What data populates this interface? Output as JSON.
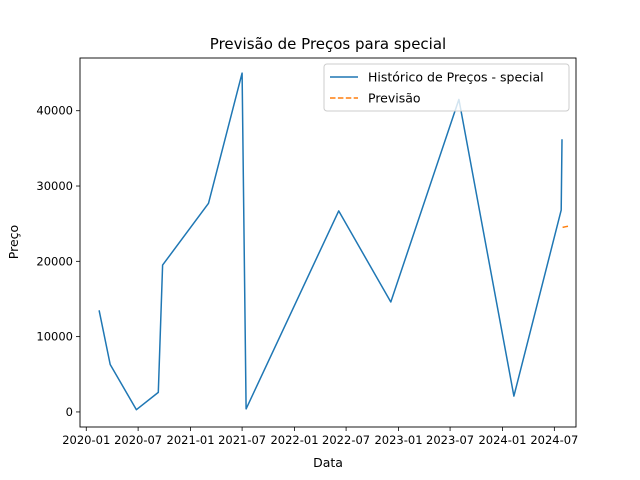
{
  "chart_data": {
    "type": "line",
    "title": "Previsão de Preços para special",
    "xlabel": "Data",
    "ylabel": "Preço",
    "x_ticks": [
      "2020-01",
      "2020-07",
      "2021-01",
      "2021-07",
      "2022-01",
      "2022-07",
      "2023-01",
      "2023-07",
      "2024-01",
      "2024-07"
    ],
    "y_ticks": [
      0,
      10000,
      20000,
      30000,
      40000
    ],
    "ylim": [
      -2000,
      47000
    ],
    "xlim": [
      "2019-12-10",
      "2024-09-15"
    ],
    "legend_position": "top-right",
    "grid": false,
    "series": [
      {
        "name": "Histórico de Preços - special",
        "color": "#1f77b4",
        "style": "solid",
        "points": [
          {
            "x": "2020-02-15",
            "y": 13500
          },
          {
            "x": "2020-03-25",
            "y": 6300
          },
          {
            "x": "2020-06-25",
            "y": 300
          },
          {
            "x": "2020-09-10",
            "y": 2600
          },
          {
            "x": "2020-09-25",
            "y": 19500
          },
          {
            "x": "2021-03-05",
            "y": 27700
          },
          {
            "x": "2021-07-01",
            "y": 45000
          },
          {
            "x": "2021-07-15",
            "y": 400
          },
          {
            "x": "2022-06-05",
            "y": 26700
          },
          {
            "x": "2022-12-05",
            "y": 14600
          },
          {
            "x": "2023-08-01",
            "y": 41500
          },
          {
            "x": "2024-02-10",
            "y": 2100
          },
          {
            "x": "2024-07-25",
            "y": 26800
          },
          {
            "x": "2024-07-28",
            "y": 36200
          }
        ]
      },
      {
        "name": "Previsão",
        "color": "#ff7f0e",
        "style": "dashed",
        "points": [
          {
            "x": "2024-07-30",
            "y": 24500
          },
          {
            "x": "2024-08-10",
            "y": 24600
          },
          {
            "x": "2024-08-25",
            "y": 24700
          }
        ]
      }
    ]
  }
}
